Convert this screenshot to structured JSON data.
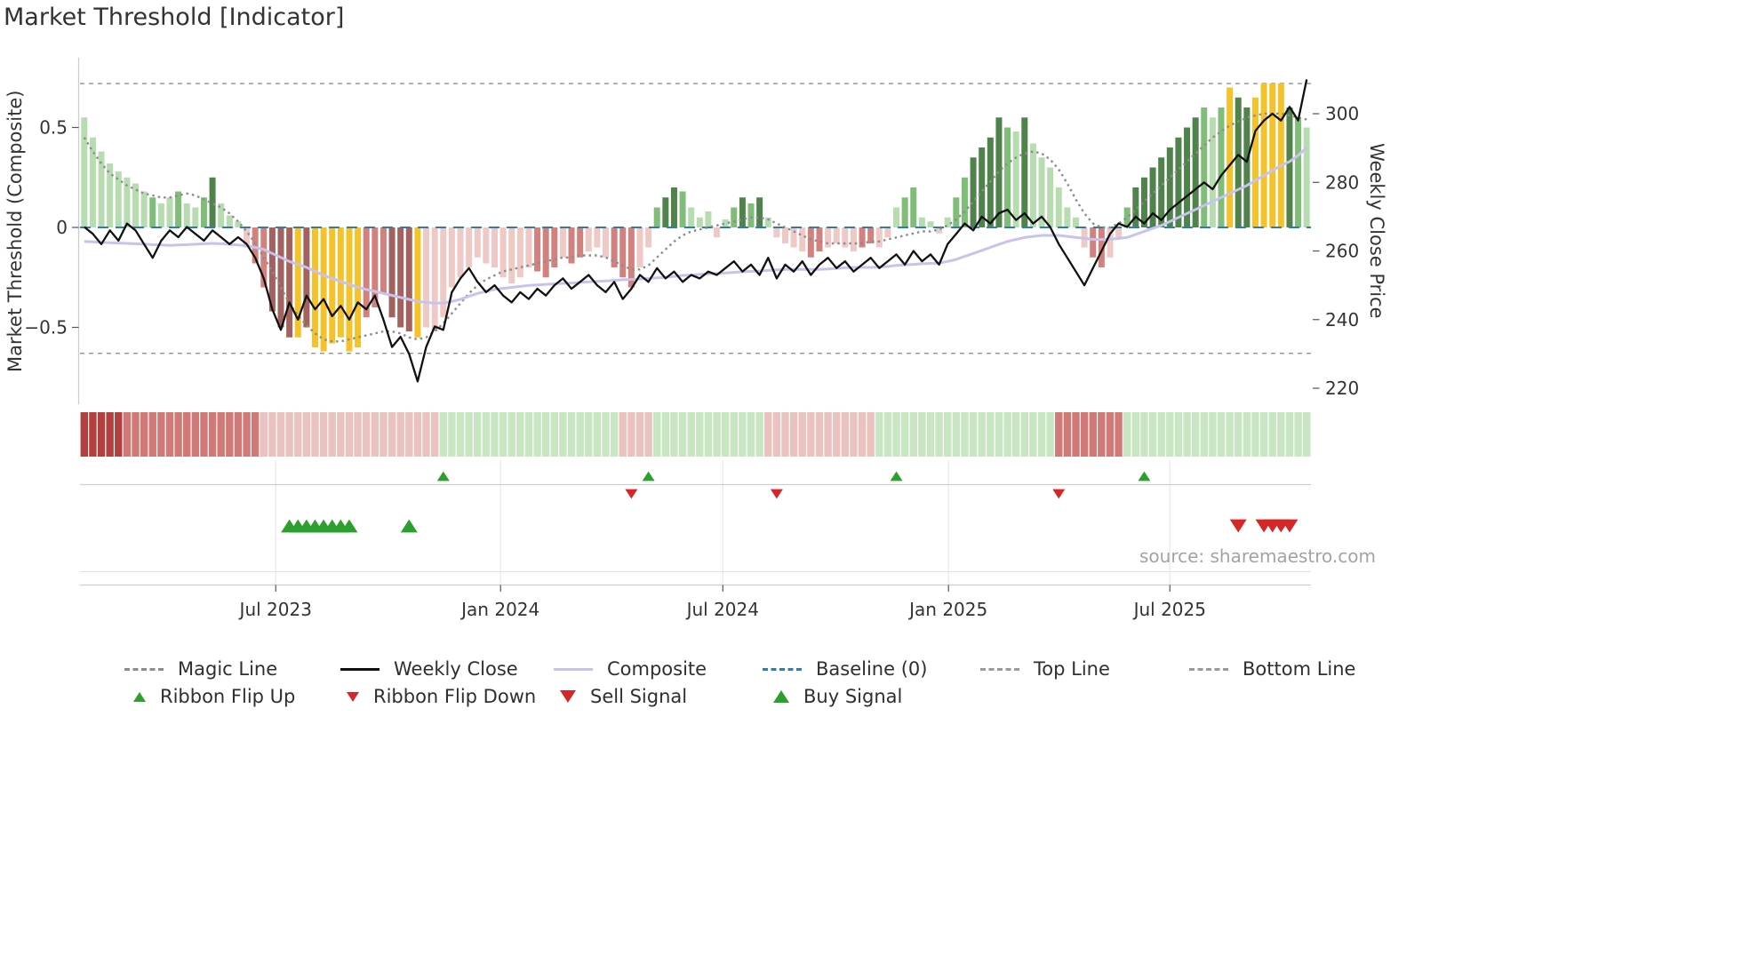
{
  "title": "Market Threshold [Indicator]",
  "source": "source: sharemaestro.com",
  "axes": {
    "left_label": "Market Threshold (Composite)",
    "right_label": "Weekly Close Price",
    "left_ticks": [
      {
        "value": 0.5,
        "label": "0.5"
      },
      {
        "value": 0,
        "label": "0"
      },
      {
        "value": -0.5,
        "label": "−0.5"
      }
    ],
    "right_ticks": [
      {
        "value": 300,
        "label": "300"
      },
      {
        "value": 280,
        "label": "280"
      },
      {
        "value": 260,
        "label": "260"
      },
      {
        "value": 240,
        "label": "240"
      },
      {
        "value": 220,
        "label": "220"
      }
    ],
    "x_ticks": [
      {
        "week": 22.9,
        "label": "Jul 2023"
      },
      {
        "week": 49.2,
        "label": "Jan 2024"
      },
      {
        "week": 75.2,
        "label": "Jul 2024"
      },
      {
        "week": 101.6,
        "label": "Jan 2025"
      },
      {
        "week": 127.5,
        "label": "Jul 2025"
      }
    ]
  },
  "colors": {
    "bars": {
      "g1": "#b7dcb0",
      "g2": "#7fbd78",
      "g3": "#4f834b",
      "r1": "#efc9c6",
      "r2": "#d2827e",
      "r3": "#a26360",
      "y": "#f4c32b"
    },
    "ribbon": {
      "-3": "#b1413e",
      "-2": "#d07976",
      "-1": "#eac2bf",
      "1": "#c9e6c3"
    },
    "magic_line": "#8c8c8c",
    "weekly_close": "#111111",
    "composite": "#c8c3eb",
    "baseline": "#2d7fa8",
    "top_bottom": "#9a9a9a",
    "buy_green": "#2ca02c",
    "sell_red": "#d62728"
  },
  "chart_data": {
    "type": "combo",
    "subtype": "weekly bar histogram + price line + oscillator lines + signal ribbon",
    "x_unit": "week",
    "n_points": 144,
    "title": "Market Threshold [Indicator]",
    "left_axis_label": "Market Threshold (Composite)",
    "right_axis_label": "Weekly Close Price",
    "left_axis_range": [
      -0.88,
      0.85
    ],
    "right_axis_range": [
      215,
      316
    ],
    "top_line": 0.72,
    "bottom_line": -0.63,
    "baseline": 0,
    "threshold_bars": [
      0.55,
      0.45,
      0.38,
      0.32,
      0.28,
      0.25,
      0.22,
      0.18,
      0.15,
      0.12,
      0.15,
      0.18,
      0.12,
      0.1,
      0.15,
      0.25,
      0.12,
      0.06,
      0.03,
      -0.1,
      -0.18,
      -0.3,
      -0.42,
      -0.5,
      -0.55,
      -0.55,
      -0.5,
      -0.6,
      -0.62,
      -0.58,
      -0.55,
      -0.62,
      -0.6,
      -0.45,
      -0.4,
      -0.33,
      -0.45,
      -0.5,
      -0.52,
      -0.55,
      -0.5,
      -0.52,
      -0.45,
      -0.3,
      -0.25,
      -0.2,
      -0.15,
      -0.18,
      -0.2,
      -0.25,
      -0.28,
      -0.25,
      -0.2,
      -0.22,
      -0.25,
      -0.2,
      -0.15,
      -0.18,
      -0.15,
      -0.12,
      -0.1,
      -0.15,
      -0.2,
      -0.25,
      -0.3,
      -0.2,
      -0.1,
      0.1,
      0.15,
      0.2,
      0.18,
      0.1,
      0.05,
      0.08,
      -0.05,
      0.04,
      0.1,
      0.15,
      0.12,
      0.15,
      0.05,
      -0.05,
      -0.08,
      -0.1,
      -0.12,
      -0.15,
      -0.12,
      -0.1,
      -0.08,
      -0.1,
      -0.12,
      -0.1,
      -0.08,
      -0.1,
      -0.05,
      0.1,
      0.15,
      0.2,
      0.05,
      0.03,
      -0.03,
      0.05,
      0.15,
      0.25,
      0.35,
      0.4,
      0.45,
      0.55,
      0.5,
      0.48,
      0.55,
      0.42,
      0.35,
      0.3,
      0.2,
      0.1,
      0.05,
      -0.1,
      -0.15,
      -0.2,
      -0.15,
      -0.05,
      0.1,
      0.2,
      0.25,
      0.3,
      0.35,
      0.4,
      0.45,
      0.5,
      0.55,
      0.6,
      0.55,
      0.6,
      0.7,
      0.65,
      0.6,
      0.65,
      0.72,
      0.72,
      0.72,
      0.6,
      0.55,
      0.5
    ],
    "bar_color_class": [
      "g1",
      "g1",
      "g1",
      "g1",
      "g1",
      "g1",
      "g1",
      "g1",
      "g2",
      "g1",
      "g1",
      "g2",
      "g1",
      "g1",
      "g2",
      "g3",
      "g1",
      "g1",
      "g1",
      "r1",
      "r2",
      "r2",
      "r3",
      "r3",
      "r3",
      "y",
      "r3",
      "y",
      "y",
      "y",
      "y",
      "y",
      "y",
      "r2",
      "r2",
      "r2",
      "r3",
      "r3",
      "r3",
      "y",
      "r1",
      "r1",
      "r1",
      "r1",
      "r1",
      "r1",
      "r1",
      "r1",
      "r1",
      "r1",
      "r1",
      "r1",
      "r1",
      "r2",
      "r2",
      "r2",
      "r1",
      "r2",
      "r2",
      "r1",
      "r1",
      "r1",
      "r2",
      "r2",
      "r2",
      "r1",
      "r1",
      "g2",
      "g3",
      "g3",
      "g2",
      "g1",
      "g1",
      "g1",
      "r1",
      "g1",
      "g2",
      "g3",
      "g2",
      "g3",
      "g1",
      "r1",
      "r1",
      "r1",
      "r1",
      "r2",
      "r2",
      "r1",
      "r1",
      "r1",
      "r1",
      "r2",
      "r2",
      "r1",
      "r1",
      "g1",
      "g2",
      "g2",
      "g1",
      "g1",
      "r1",
      "g1",
      "g2",
      "g2",
      "g3",
      "g3",
      "g3",
      "g3",
      "g2",
      "g1",
      "g3",
      "g1",
      "g1",
      "g1",
      "g1",
      "g1",
      "g1",
      "r1",
      "r2",
      "r2",
      "r1",
      "r1",
      "g2",
      "g3",
      "g3",
      "g3",
      "g3",
      "g3",
      "g3",
      "g3",
      "g3",
      "g2",
      "g1",
      "g2",
      "y",
      "g3",
      "g3",
      "y",
      "y",
      "y",
      "y",
      "g3",
      "g2",
      "g1"
    ],
    "weekly_close": [
      267,
      265,
      262,
      266,
      263,
      268,
      266,
      262,
      258,
      263,
      266,
      264,
      267,
      265,
      263,
      266,
      264,
      262,
      264,
      262,
      258,
      252,
      243,
      237,
      245,
      240,
      247,
      243,
      246,
      241,
      244,
      240,
      245,
      243,
      247,
      240,
      232,
      235,
      230,
      222,
      232,
      238,
      237,
      248,
      252,
      255,
      251,
      248,
      250,
      247,
      245,
      248,
      246,
      249,
      247,
      250,
      252,
      249,
      251,
      253,
      250,
      248,
      251,
      246,
      249,
      253,
      251,
      255,
      252,
      254,
      251,
      253,
      252,
      254,
      253,
      255,
      257,
      254,
      256,
      253,
      258,
      252,
      256,
      254,
      257,
      253,
      256,
      258,
      255,
      257,
      254,
      256,
      258,
      255,
      257,
      259,
      256,
      260,
      257,
      259,
      256,
      262,
      265,
      268,
      266,
      270,
      268,
      271,
      272,
      269,
      271,
      268,
      270,
      267,
      262,
      258,
      254,
      250,
      255,
      260,
      265,
      268,
      267,
      270,
      268,
      271,
      269,
      272,
      274,
      276,
      278,
      280,
      278,
      282,
      285,
      288,
      286,
      295,
      298,
      300,
      298,
      302,
      298,
      310
    ],
    "composite": [
      -0.07,
      -0.072,
      -0.075,
      -0.077,
      -0.078,
      -0.08,
      -0.082,
      -0.084,
      -0.086,
      -0.088,
      -0.09,
      -0.088,
      -0.086,
      -0.084,
      -0.082,
      -0.08,
      -0.082,
      -0.085,
      -0.088,
      -0.092,
      -0.1,
      -0.11,
      -0.13,
      -0.15,
      -0.17,
      -0.185,
      -0.2,
      -0.22,
      -0.24,
      -0.255,
      -0.27,
      -0.285,
      -0.3,
      -0.31,
      -0.32,
      -0.33,
      -0.34,
      -0.35,
      -0.36,
      -0.37,
      -0.375,
      -0.378,
      -0.378,
      -0.37,
      -0.36,
      -0.345,
      -0.33,
      -0.32,
      -0.31,
      -0.305,
      -0.3,
      -0.295,
      -0.29,
      -0.288,
      -0.285,
      -0.282,
      -0.28,
      -0.278,
      -0.275,
      -0.272,
      -0.27,
      -0.268,
      -0.265,
      -0.262,
      -0.26,
      -0.258,
      -0.255,
      -0.252,
      -0.25,
      -0.245,
      -0.24,
      -0.238,
      -0.235,
      -0.232,
      -0.23,
      -0.228,
      -0.225,
      -0.222,
      -0.22,
      -0.218,
      -0.215,
      -0.212,
      -0.21,
      -0.21,
      -0.21,
      -0.21,
      -0.21,
      -0.208,
      -0.205,
      -0.202,
      -0.2,
      -0.2,
      -0.2,
      -0.198,
      -0.195,
      -0.19,
      -0.188,
      -0.185,
      -0.182,
      -0.18,
      -0.178,
      -0.17,
      -0.16,
      -0.145,
      -0.13,
      -0.115,
      -0.1,
      -0.085,
      -0.07,
      -0.06,
      -0.05,
      -0.045,
      -0.04,
      -0.04,
      -0.04,
      -0.045,
      -0.05,
      -0.055,
      -0.06,
      -0.06,
      -0.06,
      -0.055,
      -0.05,
      -0.035,
      -0.02,
      -0.005,
      0.01,
      0.03,
      0.05,
      0.07,
      0.09,
      0.11,
      0.13,
      0.15,
      0.17,
      0.19,
      0.21,
      0.235,
      0.26,
      0.285,
      0.31,
      0.33,
      0.36,
      0.4
    ],
    "magic_line": [
      0.45,
      0.38,
      0.32,
      0.27,
      0.24,
      0.21,
      0.19,
      0.17,
      0.16,
      0.15,
      0.15,
      0.16,
      0.17,
      0.16,
      0.14,
      0.12,
      0.1,
      0.07,
      0.03,
      -0.02,
      -0.08,
      -0.15,
      -0.22,
      -0.3,
      -0.38,
      -0.44,
      -0.49,
      -0.53,
      -0.56,
      -0.57,
      -0.57,
      -0.56,
      -0.55,
      -0.54,
      -0.53,
      -0.52,
      -0.52,
      -0.53,
      -0.55,
      -0.56,
      -0.55,
      -0.52,
      -0.48,
      -0.43,
      -0.38,
      -0.33,
      -0.29,
      -0.26,
      -0.24,
      -0.22,
      -0.21,
      -0.2,
      -0.19,
      -0.18,
      -0.17,
      -0.16,
      -0.15,
      -0.15,
      -0.14,
      -0.14,
      -0.14,
      -0.15,
      -0.17,
      -0.19,
      -0.21,
      -0.21,
      -0.19,
      -0.15,
      -0.11,
      -0.07,
      -0.04,
      -0.02,
      -0.01,
      0.0,
      0.01,
      0.02,
      0.03,
      0.04,
      0.05,
      0.05,
      0.04,
      0.02,
      0.0,
      -0.02,
      -0.04,
      -0.06,
      -0.07,
      -0.08,
      -0.08,
      -0.08,
      -0.08,
      -0.08,
      -0.07,
      -0.07,
      -0.06,
      -0.05,
      -0.04,
      -0.03,
      -0.02,
      -0.02,
      -0.01,
      0.01,
      0.04,
      0.08,
      0.13,
      0.18,
      0.23,
      0.28,
      0.32,
      0.35,
      0.37,
      0.38,
      0.37,
      0.34,
      0.29,
      0.22,
      0.14,
      0.07,
      0.02,
      0.0,
      0.0,
      0.02,
      0.05,
      0.09,
      0.13,
      0.17,
      0.21,
      0.25,
      0.29,
      0.33,
      0.37,
      0.41,
      0.45,
      0.48,
      0.51,
      0.53,
      0.55,
      0.56,
      0.57,
      0.57,
      0.57,
      0.56,
      0.55,
      0.54
    ],
    "ribbon": [
      -3,
      -3,
      -3,
      -3,
      -3,
      -2,
      -2,
      -2,
      -2,
      -2,
      -2,
      -2,
      -2,
      -2,
      -2,
      -2,
      -2,
      -2,
      -2,
      -2,
      -2,
      -1,
      -1,
      -1,
      -1,
      -1,
      -1,
      -1,
      -1,
      -1,
      -1,
      -1,
      -1,
      -1,
      -1,
      -1,
      -1,
      -1,
      -1,
      -1,
      -1,
      -1,
      1,
      1,
      1,
      1,
      1,
      1,
      1,
      1,
      1,
      1,
      1,
      1,
      1,
      1,
      1,
      1,
      1,
      1,
      1,
      1,
      1,
      -1,
      -1,
      -1,
      -1,
      1,
      1,
      1,
      1,
      1,
      1,
      1,
      1,
      1,
      1,
      1,
      1,
      1,
      -1,
      -1,
      -1,
      -1,
      -1,
      -1,
      -1,
      -1,
      -1,
      -1,
      -1,
      -1,
      -1,
      1,
      1,
      1,
      1,
      1,
      1,
      1,
      1,
      1,
      1,
      1,
      1,
      1,
      1,
      1,
      1,
      1,
      1,
      1,
      1,
      1,
      -2,
      -2,
      -2,
      -2,
      -2,
      -2,
      -2,
      -2,
      1,
      1,
      1,
      1,
      1,
      1,
      1,
      1,
      1,
      1,
      1,
      1,
      1,
      1,
      1,
      1,
      1,
      1,
      1,
      1,
      1,
      1
    ],
    "signals": {
      "ribbon_flip_up": [
        42,
        66,
        95,
        124
      ],
      "ribbon_flip_down": [
        64,
        81,
        114
      ],
      "buy": [
        24,
        25,
        26,
        27,
        28,
        29,
        30,
        31,
        38
      ],
      "sell": [
        135,
        138,
        139,
        140,
        141
      ]
    }
  },
  "legend": {
    "row1": [
      {
        "label": "Magic Line",
        "type": "line",
        "style": "dotted",
        "color": "#8c8c8c"
      },
      {
        "label": "Weekly Close",
        "type": "line",
        "style": "solid",
        "color": "#111111"
      },
      {
        "label": "Composite",
        "type": "line",
        "style": "solid",
        "color": "#c8c3eb"
      },
      {
        "label": "Baseline (0)",
        "type": "line",
        "style": "dashed",
        "color": "#2d7fa8"
      },
      {
        "label": "Top Line",
        "type": "line",
        "style": "dotted",
        "color": "#9a9a9a"
      },
      {
        "label": "Bottom Line",
        "type": "line",
        "style": "dotted",
        "color": "#9a9a9a"
      }
    ],
    "row2": [
      {
        "label": "Ribbon Flip Up",
        "type": "triangle-up",
        "size": "small",
        "color": "#2ca02c"
      },
      {
        "label": "Ribbon Flip Down",
        "type": "triangle-down",
        "size": "small",
        "color": "#d62728"
      },
      {
        "label": "Sell Signal",
        "type": "triangle-down",
        "size": "large",
        "color": "#d62728"
      },
      {
        "label": "Buy Signal",
        "type": "triangle-up",
        "size": "large",
        "color": "#2ca02c"
      }
    ]
  }
}
